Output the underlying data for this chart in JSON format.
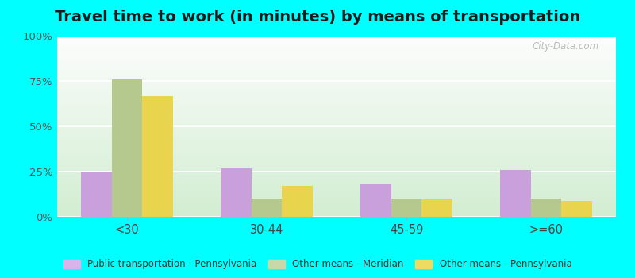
{
  "title": "Travel time to work (in minutes) by means of transportation",
  "categories": [
    "<30",
    "30-44",
    "45-59",
    ">=60"
  ],
  "series": {
    "Public transportation - Pennsylvania": [
      25,
      27,
      18,
      26
    ],
    "Other means - Meridian": [
      76,
      10,
      10,
      10
    ],
    "Other means - Pennsylvania": [
      67,
      17,
      10,
      9
    ]
  },
  "colors": {
    "Public transportation - Pennsylvania": "#c9a0dc",
    "Other means - Meridian": "#b5c98e",
    "Other means - Pennsylvania": "#e8d44d"
  },
  "legend_colors": {
    "Public transportation - Pennsylvania": "#d8b4e8",
    "Other means - Meridian": "#c8d8a8",
    "Other means - Pennsylvania": "#eedc60"
  },
  "yticks": [
    0,
    25,
    50,
    75,
    100
  ],
  "ytick_labels": [
    "0%",
    "25%",
    "50%",
    "75%",
    "100%"
  ],
  "ylim": [
    0,
    100
  ],
  "outer_background": "#00ffff",
  "watermark": "City-Data.com",
  "title_fontsize": 14,
  "bar_width": 0.22
}
